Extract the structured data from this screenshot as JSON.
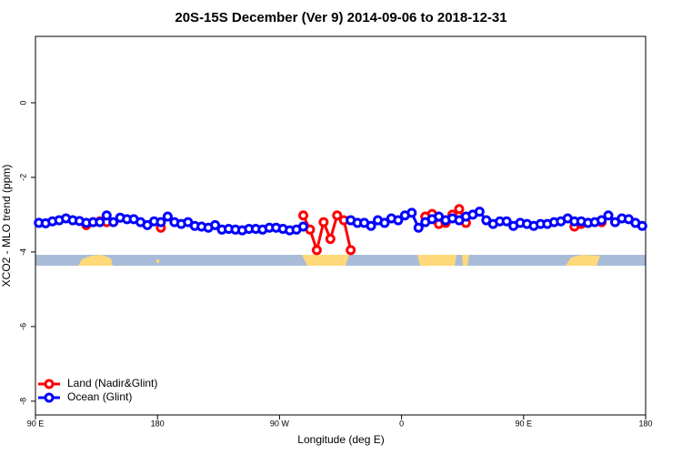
{
  "chart_data": {
    "type": "line",
    "title": "20S-15S December (Ver 9)   2014-09-06 to 2018-12-31",
    "x_label": "Longitude (deg E)",
    "y_label": "XCO2 - MLO trend (ppm)",
    "xlim": [
      90,
      540
    ],
    "ylim": [
      -8.37,
      1.78
    ],
    "xticks": [
      {
        "value": 90,
        "label": "90 E"
      },
      {
        "value": 180,
        "label": "180"
      },
      {
        "value": 270,
        "label": "90 W"
      },
      {
        "value": 360,
        "label": "0"
      },
      {
        "value": 450,
        "label": "90 E"
      },
      {
        "value": 540,
        "label": "180"
      }
    ],
    "yticks": [
      0,
      -2,
      -4,
      -6,
      -8
    ],
    "x": [
      92.5,
      97.5,
      102.5,
      107.5,
      112.5,
      117.5,
      122.5,
      127.5,
      132.5,
      137.5,
      142.5,
      147.5,
      152.5,
      157.5,
      162.5,
      167.5,
      172.5,
      177.5,
      182.5,
      187.5,
      192.5,
      197.5,
      202.5,
      207.5,
      212.5,
      217.5,
      222.5,
      227.5,
      232.5,
      237.5,
      242.5,
      247.5,
      252.5,
      257.5,
      262.5,
      267.5,
      272.5,
      277.5,
      282.5,
      287.5,
      292.5,
      297.5,
      302.5,
      307.5,
      312.5,
      317.5,
      322.5,
      327.5,
      332.5,
      337.5,
      342.5,
      347.5,
      352.5,
      357.5,
      362.5,
      367.5,
      372.5,
      377.5,
      382.5,
      387.5,
      392.5,
      397.5,
      402.5,
      407.5,
      412.5,
      417.5,
      422.5,
      427.5,
      432.5,
      437.5,
      442.5,
      447.5,
      452.5,
      457.5,
      462.5,
      467.5,
      472.5,
      477.5,
      482.5,
      487.5,
      492.5,
      497.5,
      502.5,
      507.5,
      512.5,
      517.5,
      522.5,
      527.5,
      532.5,
      537.5
    ],
    "series": [
      {
        "name": "Land (Nadir&Glint)",
        "color": "#ff0000",
        "values": [
          null,
          null,
          null,
          null,
          null,
          null,
          null,
          -3.28,
          -3.2,
          -3.18,
          -3.2,
          null,
          null,
          null,
          null,
          null,
          null,
          null,
          -3.35,
          null,
          null,
          null,
          null,
          null,
          null,
          null,
          null,
          null,
          null,
          null,
          null,
          null,
          null,
          null,
          null,
          null,
          null,
          null,
          null,
          -3.02,
          -3.4,
          -3.95,
          -3.2,
          -3.65,
          -3.02,
          -3.15,
          -3.95,
          null,
          null,
          null,
          null,
          null,
          null,
          null,
          null,
          null,
          null,
          -3.05,
          -2.98,
          -3.25,
          -3.22,
          -3.0,
          -2.85,
          -3.22,
          null,
          null,
          null,
          null,
          null,
          null,
          null,
          null,
          null,
          null,
          null,
          null,
          null,
          null,
          null,
          -3.32,
          -3.25,
          -3.22,
          null,
          -3.2,
          null,
          null,
          null,
          null,
          null,
          null
        ]
      },
      {
        "name": "Ocean (Glint)",
        "color": "#0000ff",
        "values": [
          -3.22,
          -3.23,
          -3.18,
          -3.15,
          -3.1,
          -3.15,
          -3.17,
          -3.22,
          -3.2,
          -3.2,
          -3.02,
          -3.2,
          -3.08,
          -3.12,
          -3.12,
          -3.2,
          -3.28,
          -3.18,
          -3.2,
          -3.05,
          -3.2,
          -3.25,
          -3.2,
          -3.3,
          -3.32,
          -3.35,
          -3.28,
          -3.4,
          -3.38,
          -3.4,
          -3.42,
          -3.38,
          -3.38,
          -3.4,
          -3.35,
          -3.35,
          -3.38,
          -3.42,
          -3.4,
          -3.32,
          null,
          null,
          null,
          null,
          null,
          null,
          -3.15,
          -3.22,
          -3.22,
          -3.3,
          -3.15,
          -3.22,
          -3.1,
          -3.15,
          -3.02,
          -2.95,
          -3.35,
          -3.2,
          -3.12,
          -3.05,
          -3.15,
          -3.1,
          -3.15,
          -3.05,
          -3.0,
          -2.92,
          -3.15,
          -3.25,
          -3.18,
          -3.18,
          -3.3,
          -3.22,
          -3.25,
          -3.3,
          -3.25,
          -3.25,
          -3.2,
          -3.18,
          -3.1,
          -3.18,
          -3.18,
          -3.22,
          -3.2,
          -3.15,
          -3.02,
          -3.2,
          -3.1,
          -3.12,
          -3.22,
          -3.3
        ]
      }
    ],
    "legend": "bottom-left"
  }
}
